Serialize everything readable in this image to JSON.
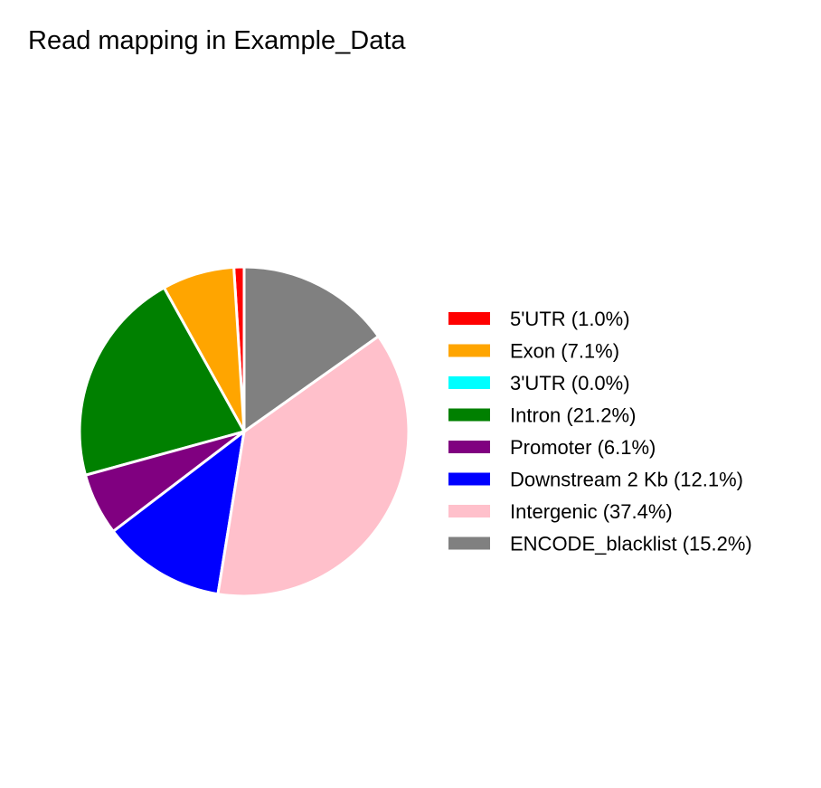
{
  "chart_data": {
    "type": "pie",
    "title": "Read mapping in Example_Data",
    "legend_position": "right",
    "slices": [
      {
        "label": "5'UTR (1.0%)",
        "value": 1.0,
        "color": "#ff0000"
      },
      {
        "label": "Exon (7.1%)",
        "value": 7.1,
        "color": "#ffa500"
      },
      {
        "label": "3'UTR (0.0%)",
        "value": 0.0,
        "color": "#00ffff"
      },
      {
        "label": "Intron (21.2%)",
        "value": 21.2,
        "color": "#008000"
      },
      {
        "label": "Promoter (6.1%)",
        "value": 6.1,
        "color": "#800080"
      },
      {
        "label": "Downstream 2 Kb (12.1%)",
        "value": 12.1,
        "color": "#0000ff"
      },
      {
        "label": "Intergenic (37.4%)",
        "value": 37.4,
        "color": "#ffc0cb"
      },
      {
        "label": "ENCODE_blacklist (15.2%)",
        "value": 15.2,
        "color": "#808080"
      }
    ]
  }
}
